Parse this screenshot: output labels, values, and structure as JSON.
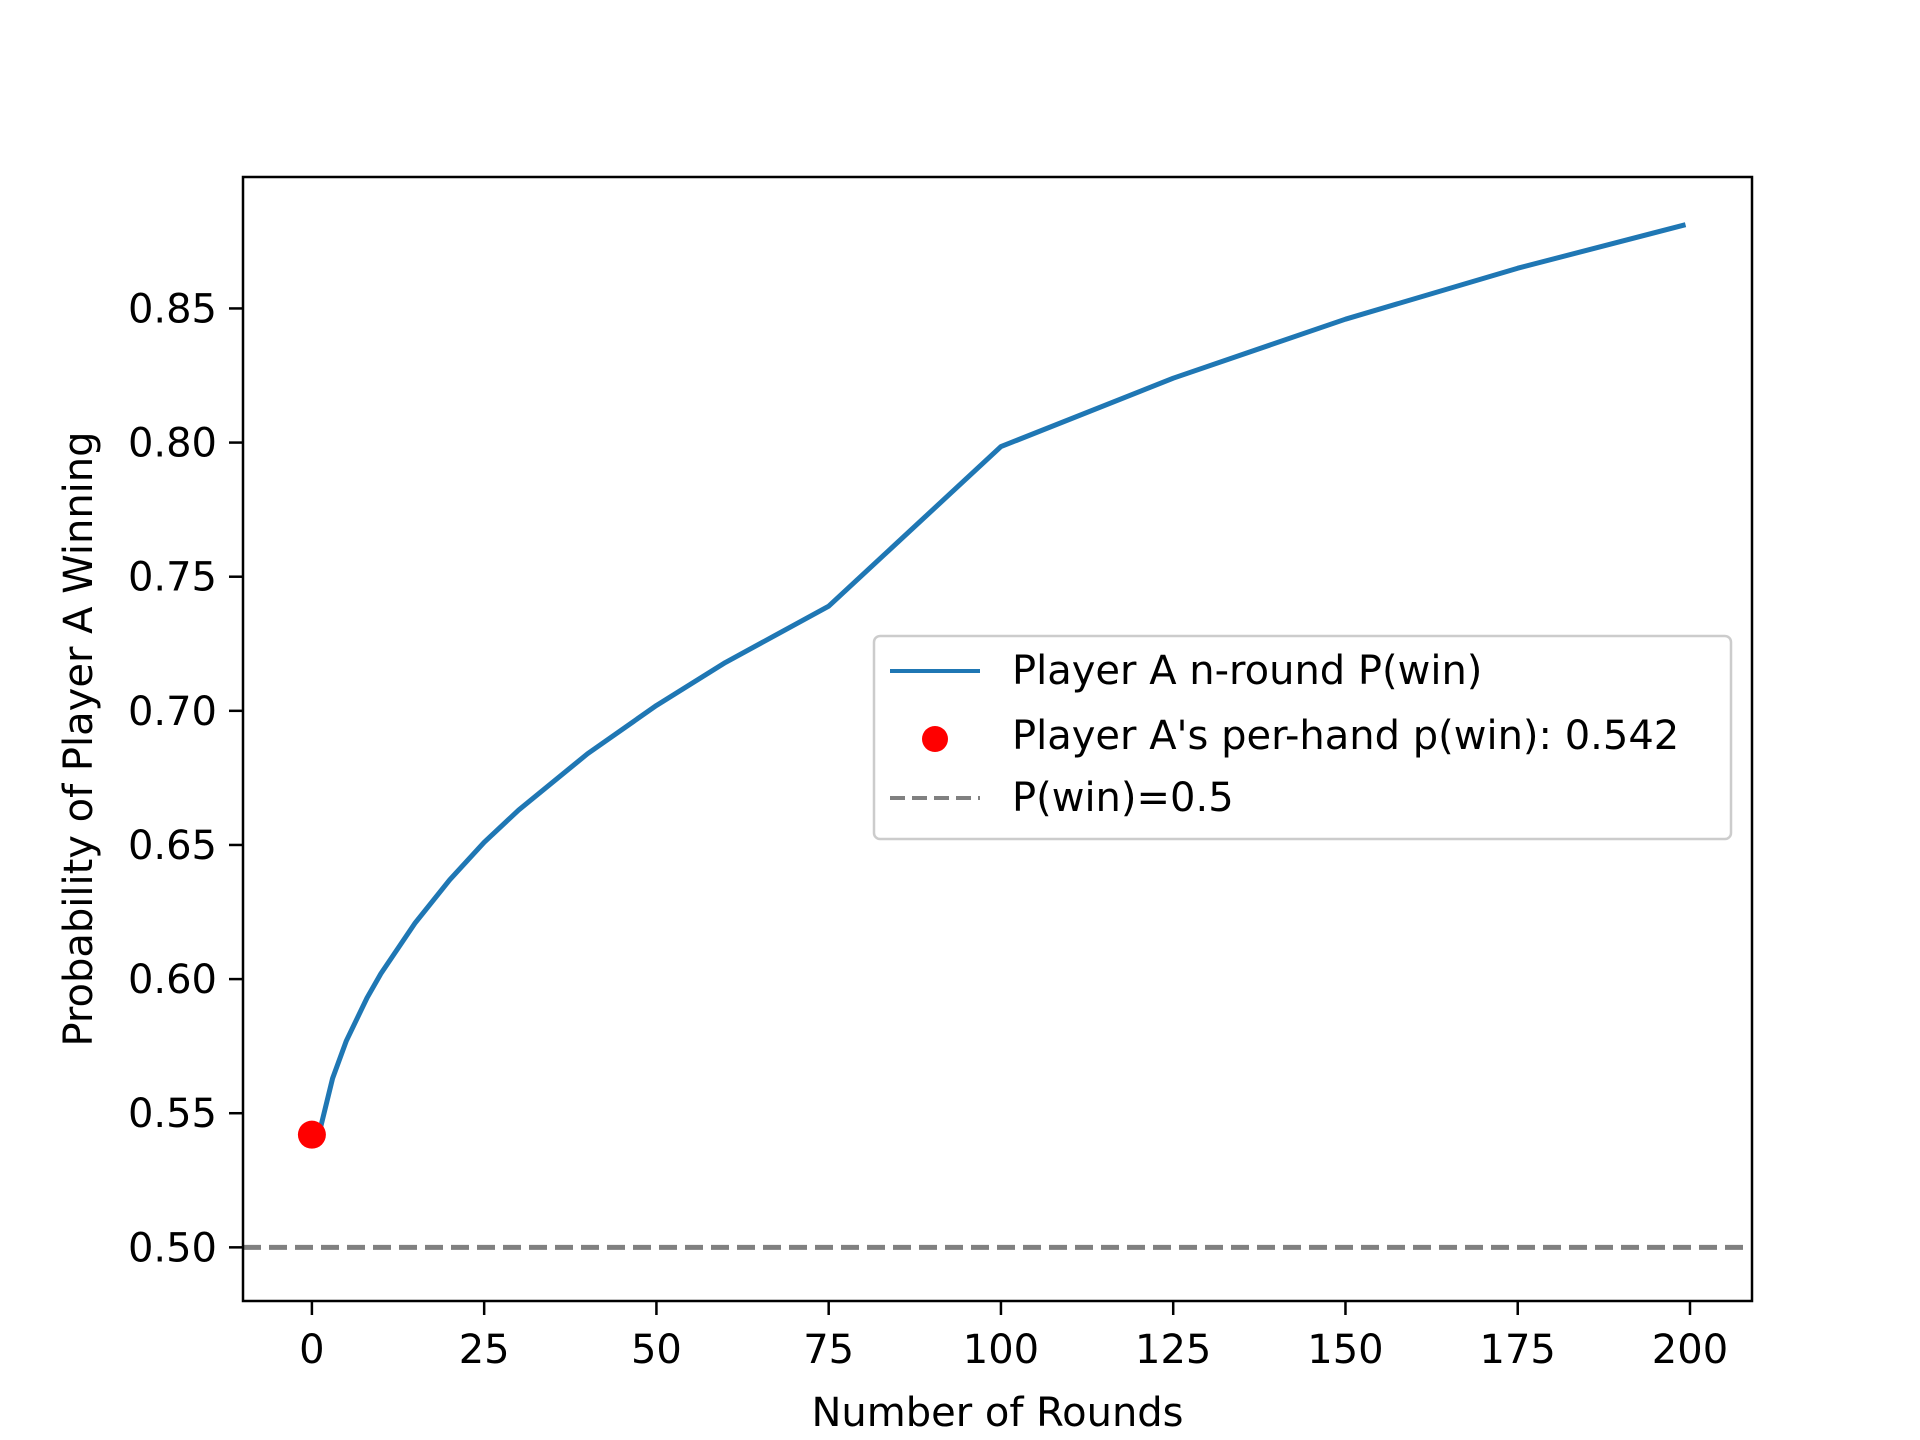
{
  "chart_data": {
    "type": "line",
    "xlabel": "Number of Rounds",
    "ylabel": "Probability of Player A Winning",
    "xlim": [
      -10,
      209
    ],
    "ylim": [
      0.48,
      0.899
    ],
    "xticks": [
      0,
      25,
      50,
      75,
      100,
      125,
      150,
      175,
      200
    ],
    "xtick_labels": [
      "0",
      "25",
      "50",
      "75",
      "100",
      "125",
      "150",
      "175",
      "200"
    ],
    "yticks": [
      0.5,
      0.55,
      0.6,
      0.65,
      0.7,
      0.75,
      0.8,
      0.85
    ],
    "ytick_labels": [
      "0.50",
      "0.55",
      "0.60",
      "0.65",
      "0.70",
      "0.75",
      "0.80",
      "0.85"
    ],
    "grid": false,
    "legend_placement": "center-right",
    "series": [
      {
        "name": "Player A n-round P(win)",
        "kind": "line",
        "color": "#1f77b4",
        "x": [
          1,
          3,
          5,
          8,
          10,
          15,
          20,
          25,
          30,
          40,
          50,
          60,
          75,
          100,
          125,
          150,
          175,
          199
        ],
        "y": [
          0.542,
          0.563,
          0.577,
          0.593,
          0.602,
          0.621,
          0.637,
          0.651,
          0.663,
          0.684,
          0.702,
          0.718,
          0.739,
          0.7985,
          0.824,
          0.846,
          0.865,
          0.881
        ]
      },
      {
        "name": "Player A's per-hand p(win): 0.542",
        "kind": "scatter",
        "color": "#ff0000",
        "x": [
          0
        ],
        "y": [
          0.542
        ]
      },
      {
        "name": "P(win)=0.5",
        "kind": "hline",
        "color": "#808080",
        "y": 0.5
      }
    ]
  }
}
